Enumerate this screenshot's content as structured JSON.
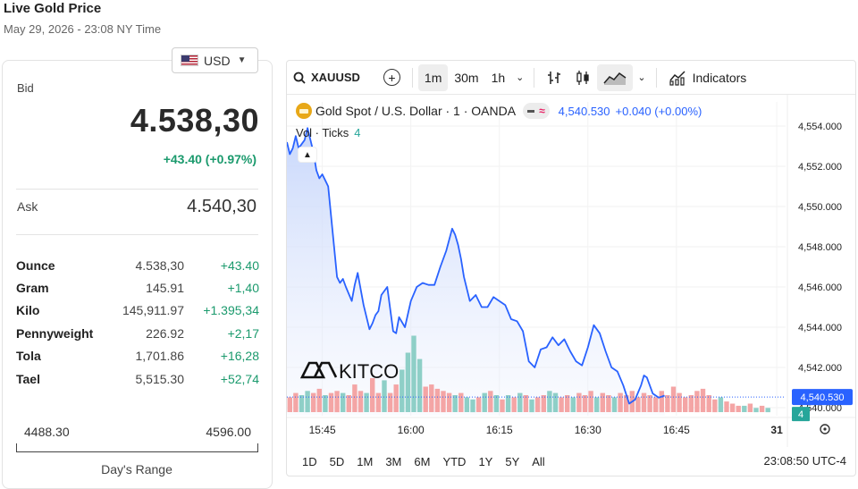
{
  "header": {
    "title": "Live Gold Price",
    "subtitle": "May 29, 2026 - 23:08 NY Time"
  },
  "currency": {
    "selected": "USD",
    "flag_icon": "us-flag-icon"
  },
  "quote": {
    "bid_label": "Bid",
    "bid": "4.538,30",
    "change": "+43.40 (+0.97%)",
    "ask_label": "Ask",
    "ask": "4.540,30",
    "up_color": "#1b9a6d"
  },
  "units": [
    {
      "name": "Ounce",
      "price": "4.538,30",
      "change": "+43.40"
    },
    {
      "name": "Gram",
      "price": "145.91",
      "change": "+1,40"
    },
    {
      "name": "Kilo",
      "price": "145,911.97",
      "change": "+1.395,34"
    },
    {
      "name": "Pennyweight",
      "price": "226.92",
      "change": "+2,17"
    },
    {
      "name": "Tola",
      "price": "1,701.86",
      "change": "+16,28"
    },
    {
      "name": "Tael",
      "price": "5,515.30",
      "change": "+52,74"
    }
  ],
  "days_range": {
    "low": "4488.30",
    "high": "4596.00",
    "label": "Day's Range"
  },
  "toolbar": {
    "symbol": "XAUUSD",
    "intervals": [
      "1m",
      "30m",
      "1h"
    ],
    "active_interval": "1m",
    "indicators_label": "Indicators"
  },
  "legend": {
    "title": "Gold Spot / U.S. Dollar · 1 · OANDA",
    "price": "4,540.530",
    "change": "+0.040 (+0.00%)",
    "vol_label": "Vol · Ticks",
    "vol_value": "4"
  },
  "watermark": "KITCO",
  "bottom": {
    "ranges": [
      "1D",
      "5D",
      "1M",
      "3M",
      "6M",
      "YTD",
      "1Y",
      "5Y",
      "All"
    ],
    "clock": "23:08:50 UTC-4"
  },
  "chart_data": {
    "type": "line",
    "line_color": "#2962ff",
    "y_ticks": [
      "4,554.000",
      "4,552.000",
      "4,550.000",
      "4,548.000",
      "4,546.000",
      "4,544.000",
      "4,542.000",
      "4,540.000"
    ],
    "y_range": [
      4539.6,
      4555.2
    ],
    "x_ticks": [
      {
        "label": "15:45",
        "minute": 6
      },
      {
        "label": "16:00",
        "minute": 21
      },
      {
        "label": "16:15",
        "minute": 36
      },
      {
        "label": "16:30",
        "minute": 51
      },
      {
        "label": "16:45",
        "minute": 66
      },
      {
        "label": "31",
        "minute": 83
      }
    ],
    "x_range": [
      0,
      84.5
    ],
    "last_price_label": "4,540.530",
    "last_price": 4540.53,
    "volume_label": "4",
    "series": [
      {
        "values": [
          [
            0,
            4553.2
          ],
          [
            0.5,
            4552.6
          ],
          [
            1,
            4552.9
          ],
          [
            1.5,
            4553.5
          ],
          [
            2,
            4552.9
          ],
          [
            2.5,
            4553.1
          ],
          [
            3,
            4553.3
          ],
          [
            3.5,
            4553.9
          ],
          [
            4,
            4553.3
          ],
          [
            4.5,
            4552.7
          ],
          [
            5,
            4551.8
          ],
          [
            5.5,
            4551.4
          ],
          [
            6,
            4551.6
          ],
          [
            6.5,
            4551.3
          ],
          [
            7,
            4551.0
          ],
          [
            7.5,
            4549.5
          ],
          [
            8,
            4548.0
          ],
          [
            8.5,
            4546.5
          ],
          [
            9,
            4546.2
          ],
          [
            9.5,
            4546.4
          ],
          [
            10,
            4546.0
          ],
          [
            11,
            4545.3
          ],
          [
            11.5,
            4546.1
          ],
          [
            12,
            4546.7
          ],
          [
            13,
            4545.1
          ],
          [
            14,
            4543.9
          ],
          [
            14.5,
            4544.2
          ],
          [
            15,
            4544.6
          ],
          [
            15.5,
            4544.8
          ],
          [
            16,
            4545.6
          ],
          [
            17,
            4546.0
          ],
          [
            18,
            4543.8
          ],
          [
            18.5,
            4543.7
          ],
          [
            19,
            4544.5
          ],
          [
            20,
            4544.0
          ],
          [
            21,
            4545.3
          ],
          [
            22,
            4546.0
          ],
          [
            23,
            4546.2
          ],
          [
            24,
            4546.1
          ],
          [
            25,
            4546.1
          ],
          [
            26,
            4547.0
          ],
          [
            27,
            4547.8
          ],
          [
            28,
            4548.9
          ],
          [
            28.5,
            4548.6
          ],
          [
            29,
            4548.1
          ],
          [
            29.5,
            4547.4
          ],
          [
            30,
            4546.5
          ],
          [
            31,
            4545.3
          ],
          [
            32,
            4545.6
          ],
          [
            33,
            4545.0
          ],
          [
            34,
            4545.0
          ],
          [
            35,
            4545.5
          ],
          [
            36,
            4545.3
          ],
          [
            37,
            4545.1
          ],
          [
            38,
            4544.4
          ],
          [
            39,
            4544.3
          ],
          [
            40,
            4543.8
          ],
          [
            41,
            4542.3
          ],
          [
            42,
            4542.0
          ],
          [
            43,
            4542.9
          ],
          [
            44,
            4543.0
          ],
          [
            45,
            4543.5
          ],
          [
            46,
            4543.1
          ],
          [
            47,
            4543.4
          ],
          [
            48,
            4542.8
          ],
          [
            49,
            4542.3
          ],
          [
            50,
            4542.1
          ],
          [
            51,
            4543.0
          ],
          [
            52,
            4544.1
          ],
          [
            53,
            4543.7
          ],
          [
            54,
            4542.8
          ],
          [
            55,
            4542.0
          ],
          [
            56,
            4541.8
          ],
          [
            57,
            4541.1
          ],
          [
            58,
            4540.2
          ],
          [
            59,
            4540.4
          ],
          [
            60,
            4541.1
          ],
          [
            60.5,
            4541.6
          ],
          [
            61,
            4541.5
          ],
          [
            62,
            4540.7
          ],
          [
            63,
            4540.5
          ],
          [
            64,
            4540.6
          ]
        ]
      }
    ],
    "volume": [
      {
        "v": 7,
        "up": false
      },
      {
        "v": 9,
        "up": false
      },
      {
        "v": 8,
        "up": true
      },
      {
        "v": 10,
        "up": true
      },
      {
        "v": 9,
        "up": false
      },
      {
        "v": 11,
        "up": false
      },
      {
        "v": 8,
        "up": true
      },
      {
        "v": 9,
        "up": false
      },
      {
        "v": 10,
        "up": false
      },
      {
        "v": 9,
        "up": true
      },
      {
        "v": 8,
        "up": false
      },
      {
        "v": 13,
        "up": false
      },
      {
        "v": 10,
        "up": false
      },
      {
        "v": 9,
        "up": true
      },
      {
        "v": 16,
        "up": false
      },
      {
        "v": 9,
        "up": false
      },
      {
        "v": 15,
        "up": true
      },
      {
        "v": 9,
        "up": false
      },
      {
        "v": 13,
        "up": false
      },
      {
        "v": 20,
        "up": true
      },
      {
        "v": 28,
        "up": true
      },
      {
        "v": 36,
        "up": true
      },
      {
        "v": 25,
        "up": true
      },
      {
        "v": 12,
        "up": false
      },
      {
        "v": 13,
        "up": false
      },
      {
        "v": 11,
        "up": false
      },
      {
        "v": 10,
        "up": false
      },
      {
        "v": 9,
        "up": false
      },
      {
        "v": 8,
        "up": true
      },
      {
        "v": 9,
        "up": false
      },
      {
        "v": 7,
        "up": true
      },
      {
        "v": 6,
        "up": true
      },
      {
        "v": 7,
        "up": false
      },
      {
        "v": 9,
        "up": true
      },
      {
        "v": 10,
        "up": false
      },
      {
        "v": 8,
        "up": true
      },
      {
        "v": 6,
        "up": false
      },
      {
        "v": 8,
        "up": true
      },
      {
        "v": 7,
        "up": false
      },
      {
        "v": 9,
        "up": true
      },
      {
        "v": 8,
        "up": false
      },
      {
        "v": 6,
        "up": true
      },
      {
        "v": 7,
        "up": false
      },
      {
        "v": 8,
        "up": false
      },
      {
        "v": 10,
        "up": true
      },
      {
        "v": 9,
        "up": true
      },
      {
        "v": 7,
        "up": false
      },
      {
        "v": 8,
        "up": false
      },
      {
        "v": 7,
        "up": true
      },
      {
        "v": 9,
        "up": false
      },
      {
        "v": 8,
        "up": false
      },
      {
        "v": 10,
        "up": false
      },
      {
        "v": 7,
        "up": true
      },
      {
        "v": 9,
        "up": false
      },
      {
        "v": 8,
        "up": false
      },
      {
        "v": 7,
        "up": true
      },
      {
        "v": 9,
        "up": false
      },
      {
        "v": 8,
        "up": false
      },
      {
        "v": 10,
        "up": false
      },
      {
        "v": 7,
        "up": false
      },
      {
        "v": 9,
        "up": false
      },
      {
        "v": 8,
        "up": false
      },
      {
        "v": 7,
        "up": false
      },
      {
        "v": 10,
        "up": false
      },
      {
        "v": 8,
        "up": false
      },
      {
        "v": 12,
        "up": false
      },
      {
        "v": 9,
        "up": false
      },
      {
        "v": 7,
        "up": false
      },
      {
        "v": 8,
        "up": false
      },
      {
        "v": 10,
        "up": false
      },
      {
        "v": 11,
        "up": false
      },
      {
        "v": 8,
        "up": false
      },
      {
        "v": 6,
        "up": false
      },
      {
        "v": 7,
        "up": true
      },
      {
        "v": 5,
        "up": false
      },
      {
        "v": 4,
        "up": false
      },
      {
        "v": 3,
        "up": false
      },
      {
        "v": 3,
        "up": true
      },
      {
        "v": 4,
        "up": false
      },
      {
        "v": 2,
        "up": true
      },
      {
        "v": 3,
        "up": false
      },
      {
        "v": 2,
        "up": true
      }
    ],
    "volume_max": 40,
    "up_color": "#8ecfc7",
    "down_color": "#f4a5a5"
  }
}
